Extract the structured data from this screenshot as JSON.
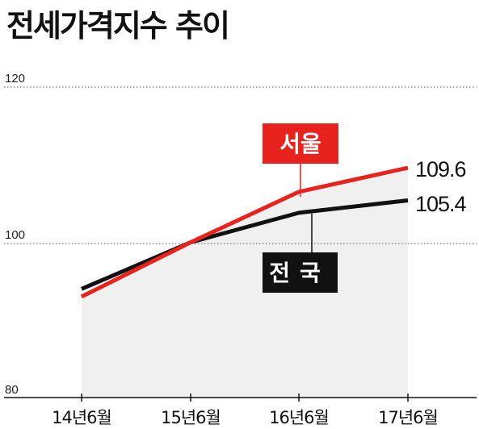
{
  "chart_data": {
    "type": "line",
    "title": "전세가격지수 추이",
    "categories": [
      "14년6월",
      "15년6월",
      "16년6월",
      "17년6월"
    ],
    "series": [
      {
        "name": "서울",
        "values": [
          93.0,
          100.0,
          106.5,
          109.6
        ],
        "end_label": "109.6",
        "color": "#e8231e"
      },
      {
        "name": "전국",
        "values": [
          94.0,
          100.0,
          103.8,
          105.4
        ],
        "end_label": "105.4",
        "color": "#111111"
      }
    ],
    "yticks": [
      "120",
      "100",
      "80"
    ],
    "ylim": [
      80,
      120
    ],
    "grid": "dotted horizontal",
    "area_fill": "#f0f0f0"
  }
}
